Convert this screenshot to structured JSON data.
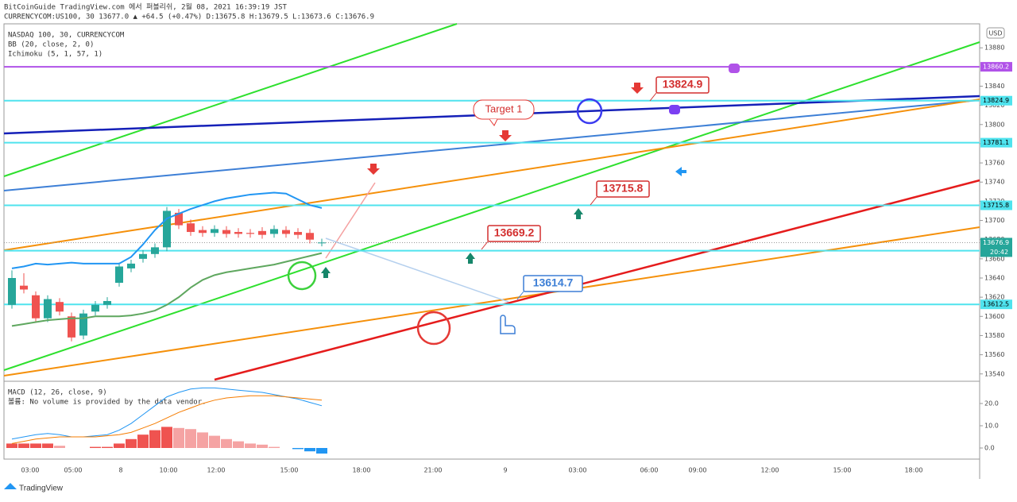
{
  "header": {
    "line1": "BitCoinGuide TradingView.com 에서 퍼블리쉬, 2월 08, 2021 16:39:19 JST",
    "line2": "CURRENCYCOM:US100, 30 13677.0 ▲ +64.5 (+0.47%) D:13675.8 H:13679.5 L:13673.6 C:13676.9"
  },
  "footer": "TradingView",
  "chart_data": [
    {
      "type": "candlestick",
      "title": "NASDAQ 100, 30, CURRENCYCOM",
      "indicators": [
        "BB (20, close, 2, 0)",
        "Ichimoku (5, 1, 57, 1)"
      ],
      "currency": "USD",
      "xticks": [
        "03:00",
        "05:00",
        "8",
        "10:00",
        "12:00",
        "15:00",
        "18:00",
        "21:00",
        "9",
        "03:00",
        "06:00",
        "09:00",
        "12:00",
        "15:00",
        "18:00"
      ],
      "open": [
        13612,
        13632,
        13622,
        13598,
        13615,
        13600,
        13580,
        13605,
        13612,
        13635,
        13650,
        13660,
        13665,
        13672,
        13708,
        13697,
        13690,
        13687,
        13690,
        13688,
        13687,
        13689,
        13686,
        13690,
        13688,
        13687,
        13677
      ],
      "high": [
        13648,
        13645,
        13626,
        13622,
        13619,
        13604,
        13607,
        13616,
        13620,
        13656,
        13659,
        13669,
        13676,
        13714,
        13712,
        13701,
        13694,
        13695,
        13694,
        13692,
        13691,
        13693,
        13695,
        13694,
        13692,
        13691,
        13681
      ],
      "low": [
        13608,
        13624,
        13594,
        13594,
        13601,
        13574,
        13576,
        13601,
        13608,
        13631,
        13646,
        13656,
        13661,
        13668,
        13691,
        13684,
        13683,
        13683,
        13682,
        13682,
        13682,
        13681,
        13682,
        13682,
        13681,
        13676,
        13673
      ],
      "close": [
        13640,
        13628,
        13598,
        13618,
        13605,
        13578,
        13603,
        13612,
        13616,
        13652,
        13655,
        13665,
        13672,
        13710,
        13695,
        13688,
        13687,
        13691,
        13686,
        13686,
        13686,
        13685,
        13691,
        13686,
        13685,
        13680,
        13677
      ],
      "up_color": "#26a69a",
      "down_color": "#ef5350",
      "series": [
        {
          "color": "#2196f3",
          "values": [
            13650,
            13652,
            13655,
            13654,
            13655,
            13656,
            13655,
            13655,
            13655,
            13655,
            13662,
            13675,
            13690,
            13702,
            13707,
            13712,
            13716,
            13720,
            13723,
            13725,
            13727,
            13728,
            13729,
            13728,
            13722,
            13716,
            13713
          ]
        },
        {
          "color": "#5fa75f",
          "values": [
            13590,
            13592,
            13594,
            13596,
            13597,
            13598,
            13598,
            13600,
            13600,
            13600,
            13601,
            13603,
            13606,
            13612,
            13620,
            13630,
            13638,
            13643,
            13646,
            13648,
            13650,
            13652,
            13654,
            13657,
            13660,
            13663,
            13666
          ]
        }
      ],
      "levels": [
        13860.2,
        13824.9,
        13781.1,
        13715.8,
        13668.5,
        13612.5
      ],
      "level_colors": [
        "#b052e8",
        "#4fe3ee",
        "#4fe3ee",
        "#4fe3ee",
        "#4fe3ee",
        "#4fe3ee"
      ],
      "last_price": 13676.9,
      "countdown": "20:42",
      "callouts": [
        13824.9,
        13715.8,
        13669.2,
        13614.7
      ],
      "target": "Target 1",
      "ylim": [
        13534,
        13905
      ],
      "yticks": [
        13540,
        13560,
        13580,
        13600,
        13620,
        13640,
        13660,
        13680,
        13700,
        13720,
        13740,
        13760,
        13780,
        13800,
        13820,
        13840,
        13880
      ]
    },
    {
      "type": "bar",
      "title": "MACD (12, 26, close, 9)",
      "note": "볼륨: No volume is provided by the data vendor.",
      "values": [
        2,
        2,
        2,
        2,
        1,
        0,
        0,
        0.5,
        0.5,
        2,
        4,
        6,
        8,
        9.5,
        9,
        8.5,
        7,
        5.5,
        4,
        3,
        2,
        1.5,
        0.5,
        0,
        -0.5,
        -1.5,
        -2.5
      ],
      "series": [
        {
          "color": "#2196f3",
          "values": [
            4,
            5,
            6,
            6.5,
            6,
            5,
            5,
            5.5,
            6,
            8,
            11,
            15,
            19,
            23,
            25,
            26.5,
            27,
            27,
            26.5,
            26,
            25.5,
            25,
            24,
            23,
            22,
            20.5,
            19
          ]
        },
        {
          "color": "#f57c00",
          "values": [
            2,
            3,
            4,
            4.5,
            5,
            5,
            5,
            5,
            5.5,
            6,
            7,
            9,
            11,
            13.5,
            16,
            18,
            20,
            21.5,
            22.5,
            23,
            23.5,
            23.5,
            23.5,
            23,
            22.5,
            22,
            21.5
          ]
        }
      ],
      "ylim": [
        -5,
        30
      ],
      "yticks": [
        {
          "value": 0,
          "label": "0.0"
        },
        {
          "value": 10,
          "label": "10.0"
        },
        {
          "value": 20,
          "label": "20.0"
        }
      ]
    }
  ]
}
